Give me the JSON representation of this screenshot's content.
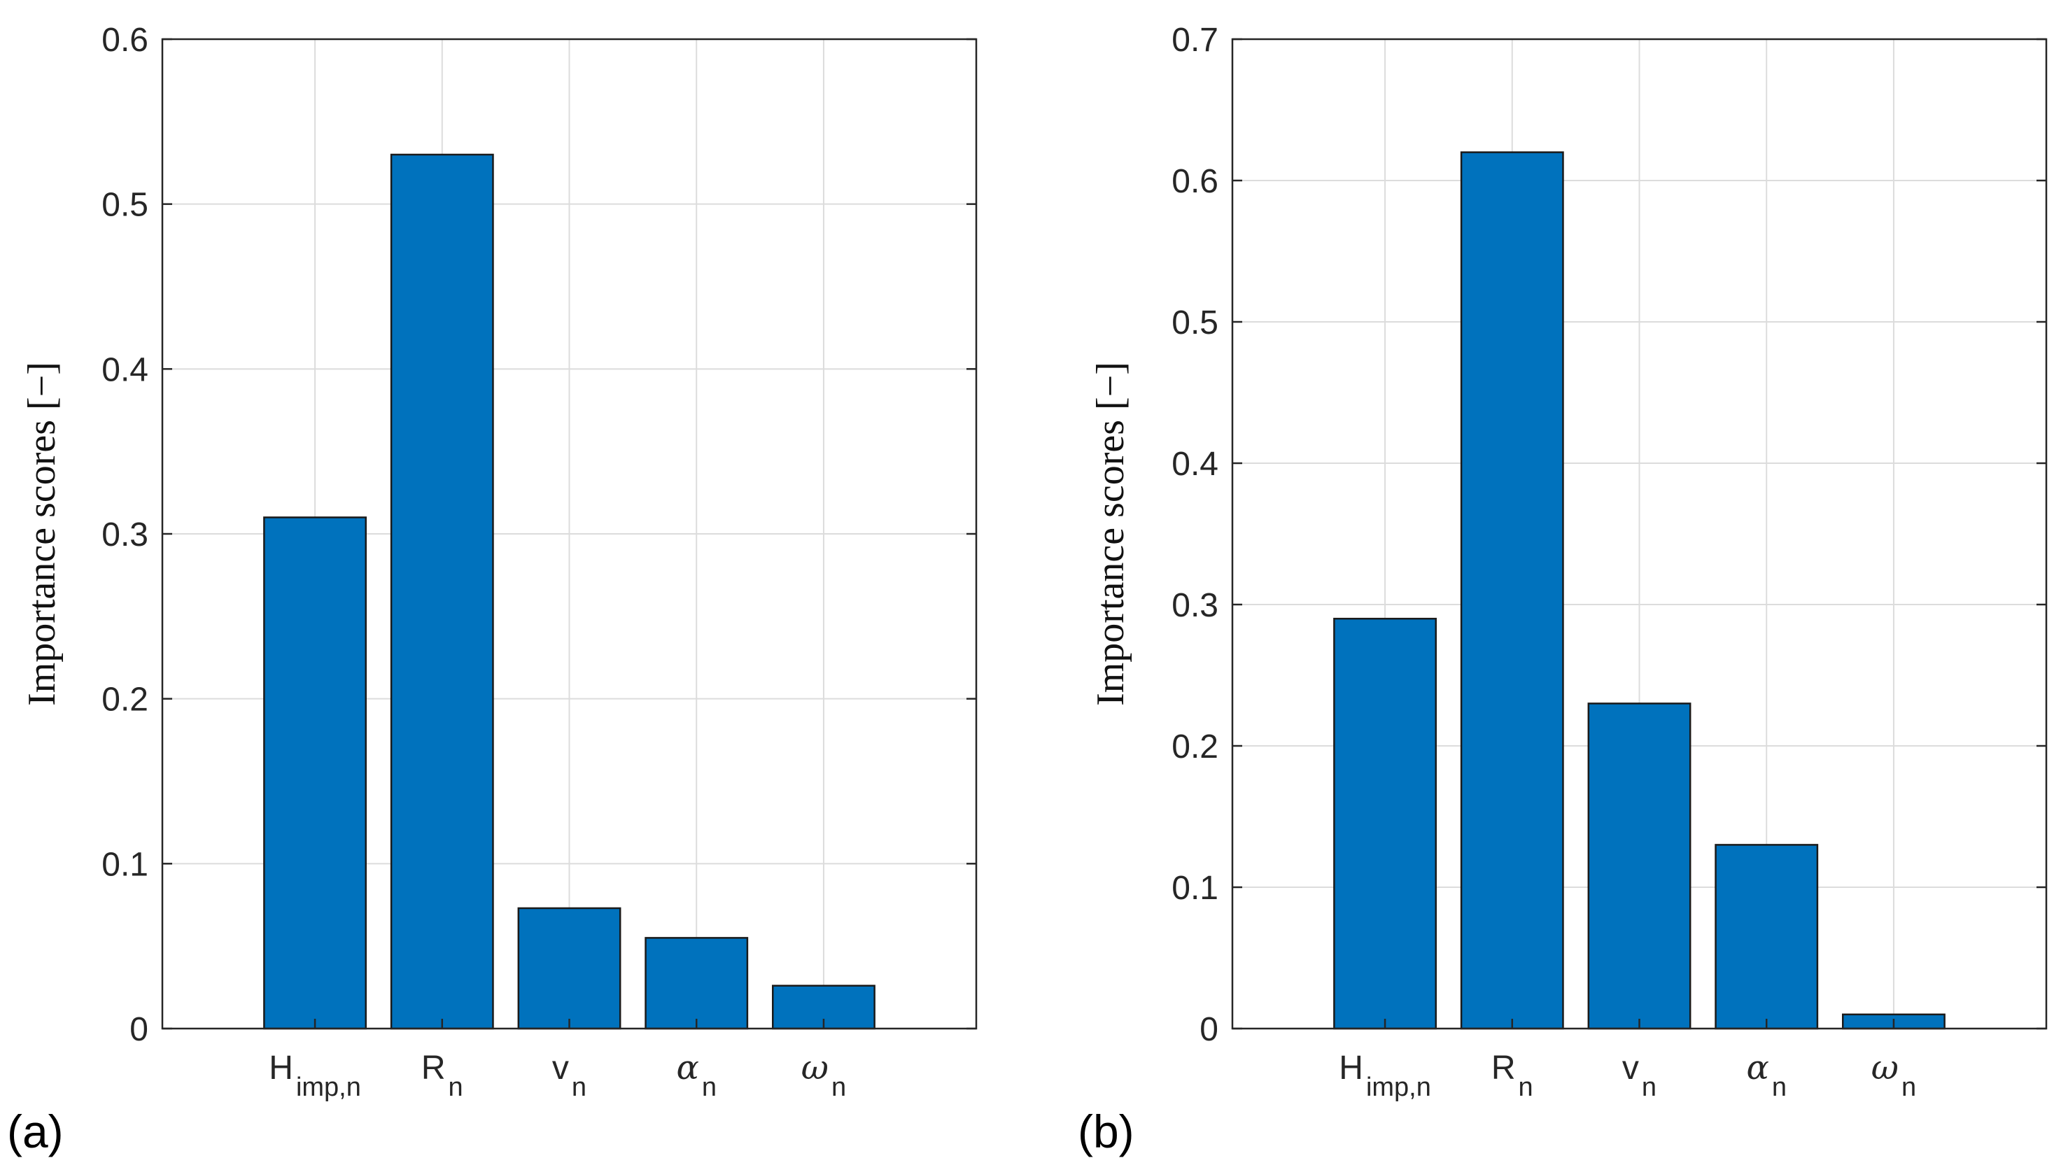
{
  "chart_data": [
    {
      "type": "bar",
      "panel_label": "(a)",
      "ylabel": "Importance scores [−]",
      "ylim": [
        0,
        0.6
      ],
      "yticks": [
        0,
        0.1,
        0.2,
        0.3,
        0.4,
        0.5,
        0.6
      ],
      "ytick_labels": [
        "0",
        "0.1",
        "0.2",
        "0.3",
        "0.4",
        "0.5",
        "0.6"
      ],
      "grid": true,
      "categories": [
        {
          "base": "H",
          "sub": "imp,n",
          "greek": false
        },
        {
          "base": "R",
          "sub": "n",
          "greek": false
        },
        {
          "base": "v",
          "sub": "n",
          "greek": false
        },
        {
          "base": "α",
          "sub": "n",
          "greek": true
        },
        {
          "base": "ω",
          "sub": "n",
          "greek": true
        }
      ],
      "values": [
        0.31,
        0.53,
        0.073,
        0.055,
        0.026
      ],
      "bar_color": "#0072BD"
    },
    {
      "type": "bar",
      "panel_label": "(b)",
      "ylabel": "Importance scores [−]",
      "ylim": [
        0,
        0.7
      ],
      "yticks": [
        0,
        0.1,
        0.2,
        0.3,
        0.4,
        0.5,
        0.6,
        0.7
      ],
      "ytick_labels": [
        "0",
        "0.1",
        "0.2",
        "0.3",
        "0.4",
        "0.5",
        "0.6",
        "0.7"
      ],
      "grid": true,
      "categories": [
        {
          "base": "H",
          "sub": "imp,n",
          "greek": false
        },
        {
          "base": "R",
          "sub": "n",
          "greek": false
        },
        {
          "base": "v",
          "sub": "n",
          "greek": false
        },
        {
          "base": "α",
          "sub": "n",
          "greek": true
        },
        {
          "base": "ω",
          "sub": "n",
          "greek": true
        }
      ],
      "values": [
        0.29,
        0.62,
        0.23,
        0.13,
        0.01
      ],
      "bar_color": "#0072BD"
    }
  ]
}
